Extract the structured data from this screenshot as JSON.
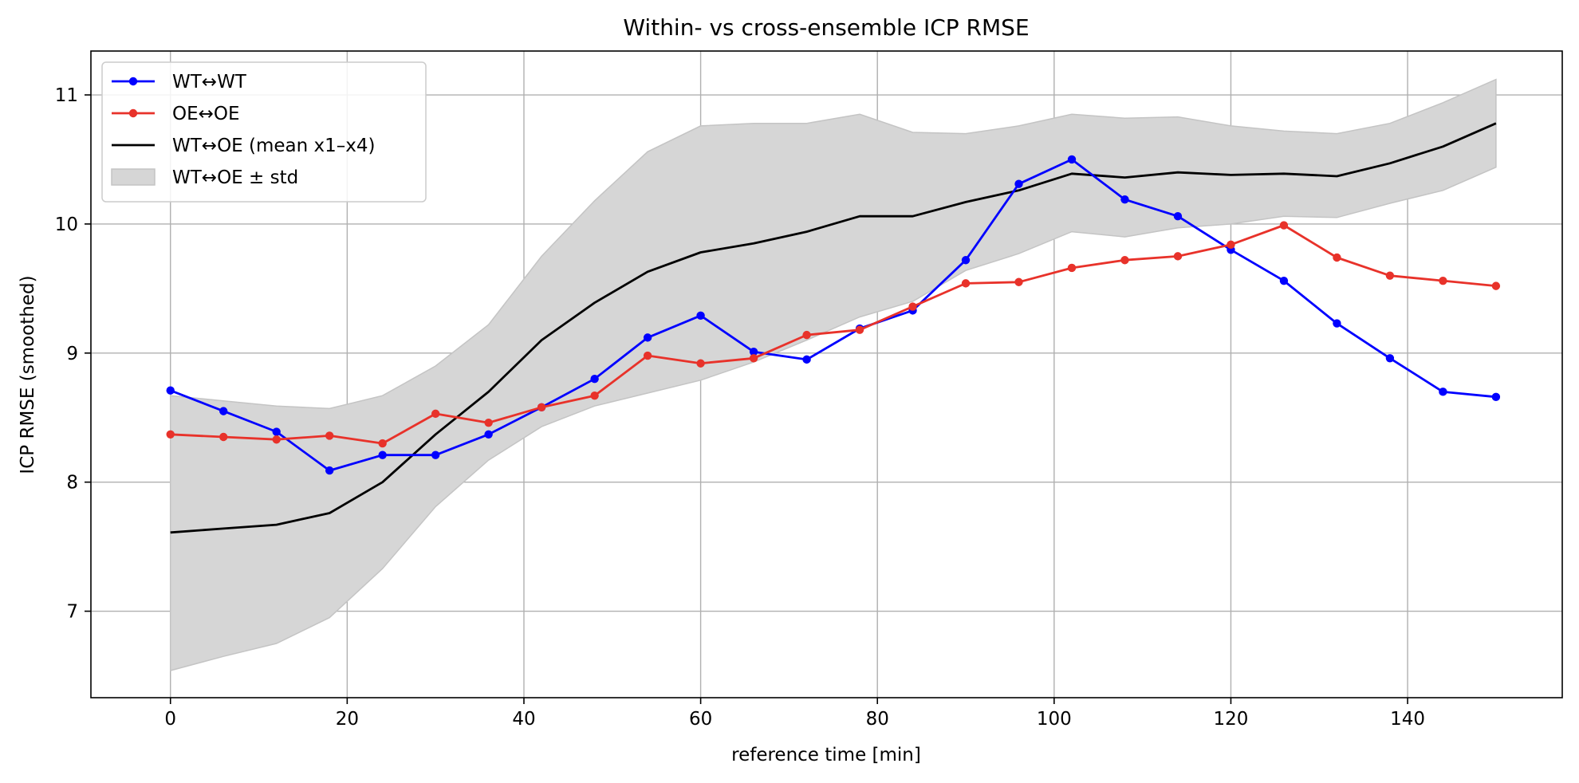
{
  "chart_data": {
    "type": "line",
    "title": "Within- vs cross-ensemble ICP RMSE",
    "xlabel": "reference time [min]",
    "ylabel": "ICP RMSE (smoothed)",
    "xlim": [
      -9,
      157.5
    ],
    "ylim": [
      6.33,
      11.34
    ],
    "xticks": [
      0,
      20,
      40,
      60,
      80,
      100,
      120,
      140
    ],
    "yticks": [
      7,
      8,
      9,
      10,
      11
    ],
    "grid": true,
    "legend_position": "top-left",
    "x": [
      0,
      6,
      12,
      18,
      24,
      30,
      36,
      42,
      48,
      54,
      60,
      66,
      72,
      78,
      84,
      90,
      96,
      102,
      108,
      114,
      120,
      126,
      132,
      138,
      144,
      150
    ],
    "series": [
      {
        "name": "WT↔WT",
        "color": "#0000ff",
        "marker": true,
        "values": [
          8.71,
          8.55,
          8.39,
          8.09,
          8.21,
          8.21,
          8.37,
          8.58,
          8.8,
          9.12,
          9.29,
          9.01,
          8.95,
          9.19,
          9.33,
          9.72,
          10.31,
          10.5,
          10.19,
          10.06,
          9.8,
          9.56,
          9.23,
          8.96,
          8.7,
          8.66
        ]
      },
      {
        "name": "OE↔OE",
        "color": "#e8322a",
        "marker": true,
        "values": [
          8.37,
          8.35,
          8.33,
          8.36,
          8.3,
          8.53,
          8.46,
          8.58,
          8.67,
          8.98,
          8.92,
          8.96,
          9.14,
          9.18,
          9.36,
          9.54,
          9.55,
          9.66,
          9.72,
          9.75,
          9.84,
          9.99,
          9.74,
          9.6,
          9.56,
          9.52
        ]
      },
      {
        "name": "WT↔OE (mean x1–x4)",
        "color": "#000000",
        "marker": false,
        "values": [
          7.61,
          7.64,
          7.67,
          7.76,
          8.0,
          8.37,
          8.7,
          9.1,
          9.39,
          9.63,
          9.78,
          9.85,
          9.94,
          10.06,
          10.06,
          10.17,
          10.26,
          10.39,
          10.36,
          10.4,
          10.38,
          10.39,
          10.37,
          10.47,
          10.6,
          10.78
        ]
      }
    ],
    "band": {
      "name": "WT↔OE ± std",
      "color": "#d6d6d6",
      "upper": [
        8.67,
        8.63,
        8.59,
        8.57,
        8.67,
        8.9,
        9.22,
        9.75,
        10.18,
        10.56,
        10.76,
        10.78,
        10.78,
        10.85,
        10.71,
        10.7,
        10.76,
        10.85,
        10.82,
        10.83,
        10.76,
        10.72,
        10.7,
        10.78,
        10.94,
        11.12
      ],
      "lower": [
        6.54,
        6.65,
        6.75,
        6.95,
        7.33,
        7.81,
        8.17,
        8.43,
        8.59,
        8.69,
        8.79,
        8.93,
        9.1,
        9.28,
        9.4,
        9.64,
        9.77,
        9.94,
        9.9,
        9.97,
        10.0,
        10.06,
        10.05,
        10.16,
        10.26,
        10.44
      ]
    }
  }
}
